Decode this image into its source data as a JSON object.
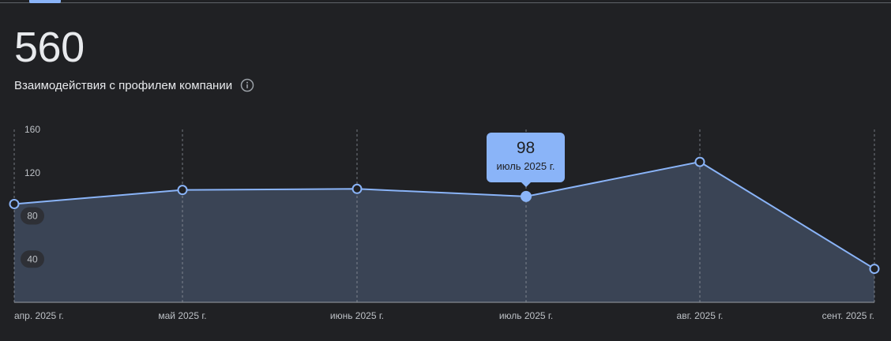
{
  "header": {
    "value": "560",
    "metric_label": "Взаимодействия с профилем компании"
  },
  "tooltip": {
    "value": "98",
    "date": "июль 2025 г."
  },
  "colors": {
    "background": "#202124",
    "line": "#8ab4f8",
    "area": "#3c4759",
    "grid": "#9aa0a6",
    "text": "#e8eaed",
    "muted_text": "#bdc1c6"
  },
  "chart_data": {
    "type": "area",
    "categories": [
      "апр. 2025 г.",
      "май 2025 г.",
      "июнь 2025 г.",
      "июль 2025 г.",
      "авг. 2025 г.",
      "сент. 2025 г."
    ],
    "series": [
      {
        "values": [
          91,
          104,
          105,
          98,
          130,
          31
        ]
      }
    ],
    "ylim": [
      0,
      160
    ],
    "yticks": [
      40,
      80,
      120,
      160
    ],
    "highlighted_index": 3,
    "grid": "vertical dashed"
  }
}
